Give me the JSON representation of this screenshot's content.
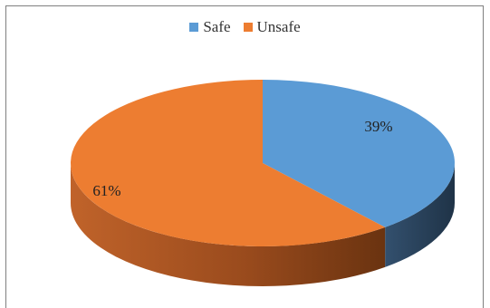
{
  "chart_data": {
    "type": "pie",
    "style": "3d",
    "slices": [
      {
        "label": "Safe",
        "value": 39,
        "display": "39%",
        "color": "#5b9bd5",
        "side_color": "#2e4a66"
      },
      {
        "label": "Unsafe",
        "value": 61,
        "display": "61%",
        "color": "#ed7d31",
        "side_color": "#8a4317"
      }
    ],
    "legend": {
      "placement": "top",
      "entries": [
        "Safe",
        "Unsafe"
      ]
    },
    "title": ""
  }
}
